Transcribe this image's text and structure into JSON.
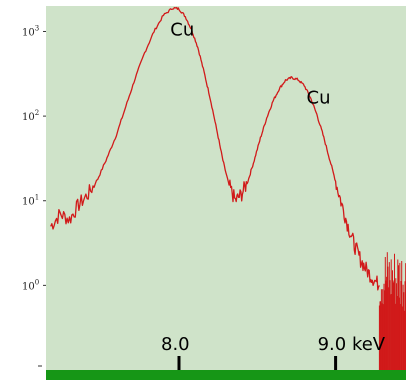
{
  "chart_data": {
    "type": "line",
    "scale": "log-y",
    "xlabel": "",
    "ylabel": "",
    "x_unit": "keV",
    "x_ticks": [
      {
        "value": 8.0,
        "label": "8.0"
      },
      {
        "value": 9.0,
        "label": "9.0 keV"
      }
    ],
    "y_ticks": [
      {
        "value": 1000,
        "base": "10",
        "exp": "3"
      },
      {
        "value": 100,
        "base": "10",
        "exp": "2"
      },
      {
        "value": 10,
        "base": "10",
        "exp": "1"
      },
      {
        "value": 1,
        "base": "10",
        "exp": "0"
      }
    ],
    "xlim": [
      7.15,
      9.45
    ],
    "ylim": [
      0.1,
      2000
    ],
    "annotations": [
      {
        "text": "Cu",
        "x": 8.04,
        "y": 900
      },
      {
        "text": "Cu",
        "x": 8.91,
        "y": 140
      }
    ],
    "series": [
      {
        "color": "#d11a1a",
        "x": [
          7.18,
          7.24,
          7.3,
          7.36,
          7.42,
          7.48,
          7.54,
          7.6,
          7.66,
          7.72,
          7.78,
          7.84,
          7.9,
          7.96,
          8.0,
          8.04,
          8.08,
          8.12,
          8.16,
          8.2,
          8.24,
          8.28,
          8.32,
          8.36,
          8.4,
          8.44,
          8.48,
          8.52,
          8.56,
          8.6,
          8.64,
          8.68,
          8.72,
          8.76,
          8.8,
          8.84,
          8.88,
          8.92,
          8.96,
          9.0,
          9.04,
          9.08,
          9.12,
          9.16,
          9.2,
          9.24,
          9.28
        ],
        "y": [
          5,
          7,
          6,
          9,
          12,
          18,
          32,
          60,
          130,
          280,
          560,
          1000,
          1550,
          1900,
          1850,
          1500,
          1050,
          650,
          330,
          160,
          70,
          30,
          15,
          10,
          12,
          17,
          30,
          55,
          95,
          150,
          210,
          265,
          285,
          270,
          230,
          165,
          105,
          60,
          32,
          17,
          9,
          5,
          3,
          2,
          1.5,
          1.2,
          1
        ]
      }
    ],
    "noise_region": {
      "from_x": 9.28,
      "to_x": 9.45,
      "low": 0.1,
      "high": 3
    },
    "colors": {
      "background": "#cfe3c9",
      "line": "#d11a1a",
      "baseline": "#169616"
    }
  }
}
